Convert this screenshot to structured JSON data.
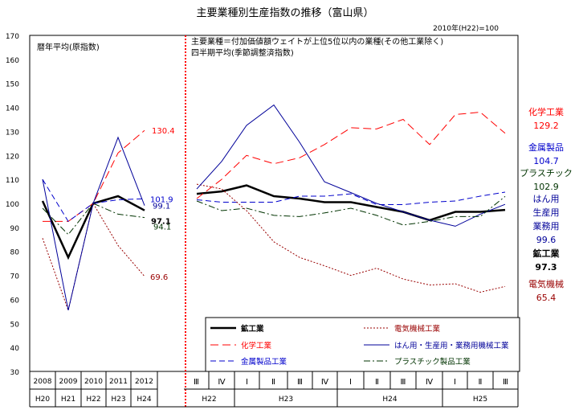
{
  "chart_data": {
    "type": "line",
    "title": "主要業種別生産指数の推移（富山県）",
    "base_note": "2010年(H22)=100",
    "ylim": [
      30,
      170
    ],
    "yticks": [
      30,
      40,
      50,
      60,
      70,
      80,
      90,
      100,
      110,
      120,
      130,
      140,
      150,
      160,
      170
    ],
    "grid": false,
    "annual_note": "暦年平均(原指数)",
    "quarterly_note_1": "主要業種＝付加価値額ウェイトが上位5位以内の業種(その他工業除く)",
    "quarterly_note_2": "四半期平均(季節調整済指数)",
    "annual_categories": [
      {
        "year": "2008",
        "era": "H20"
      },
      {
        "year": "2009",
        "era": "H21"
      },
      {
        "year": "2010",
        "era": "H22"
      },
      {
        "year": "2011",
        "era": "H23"
      },
      {
        "year": "2012",
        "era": "H24"
      }
    ],
    "quarter_categories": [
      "Ⅲ",
      "Ⅳ",
      "Ⅰ",
      "Ⅱ",
      "Ⅲ",
      "Ⅳ",
      "Ⅰ",
      "Ⅱ",
      "Ⅲ",
      "Ⅳ",
      "Ⅰ",
      "Ⅱ",
      "Ⅲ"
    ],
    "quarter_year_groups": [
      {
        "label": "H22",
        "start": 0,
        "end": 1
      },
      {
        "label": "H23",
        "start": 2,
        "end": 5
      },
      {
        "label": "H24",
        "start": 6,
        "end": 9
      },
      {
        "label": "H25",
        "start": 10,
        "end": 12
      }
    ],
    "series": [
      {
        "name": "鉱工業",
        "color": "#000000",
        "dash": "solid",
        "width": 2.5,
        "annual": [
          101,
          77.5,
          100,
          103,
          97.1
        ],
        "quarterly": [
          104,
          105,
          107.5,
          103,
          102,
          100.5,
          100.5,
          98.5,
          96.5,
          93,
          96.5,
          96.5,
          97.3
        ],
        "annual_end_label": "97.1",
        "right_label": [
          "鉱工業",
          "97.3"
        ]
      },
      {
        "name": "化学工業",
        "color": "#ff0000",
        "dash": "longdash",
        "width": 1,
        "annual": [
          92.5,
          92.5,
          100,
          121,
          130.4
        ],
        "quarterly": [
          102,
          110,
          120,
          116.5,
          119,
          124.5,
          131.5,
          131,
          135,
          124.5,
          137,
          138,
          129.2
        ],
        "annual_end_label": "130.4",
        "right_label": [
          "化学工業",
          "129.2"
        ]
      },
      {
        "name": "金属製品工業",
        "color": "#0000cc",
        "dash": "dash",
        "width": 1,
        "annual": [
          110,
          92.5,
          100,
          101.5,
          101.9
        ],
        "quarterly": [
          101.5,
          100.5,
          100.5,
          100.5,
          103,
          103,
          104,
          99.5,
          99.5,
          100.5,
          101,
          103,
          104.7
        ],
        "annual_end_label": "101.9",
        "right_label": [
          "金属製品",
          "104.7"
        ]
      },
      {
        "name": "電気機械工業",
        "color": "#990000",
        "dash": "dot",
        "width": 1,
        "annual": [
          85.5,
          55.5,
          100,
          82.5,
          69.6
        ],
        "quarterly": [
          108,
          106,
          97,
          84,
          77.5,
          74,
          70,
          73,
          68.5,
          66,
          66.5,
          63,
          65.4
        ],
        "annual_end_label": "69.6",
        "right_label": [
          "電気機械",
          "65.4"
        ]
      },
      {
        "name": "はん用・生産用・業務用機械工業",
        "color": "#000099",
        "dash": "solid",
        "width": 1,
        "annual": [
          110,
          55.5,
          100,
          127.5,
          99.1
        ],
        "quarterly": [
          106,
          117.5,
          132.5,
          141,
          125.5,
          109,
          104.5,
          100,
          96.5,
          93,
          90.5,
          95.5,
          99.6
        ],
        "annual_end_label": "99.1",
        "right_label": [
          "はん用",
          "生産用",
          "業務用",
          "99.6"
        ]
      },
      {
        "name": "プラスチック製品工業",
        "color": "#003300",
        "dash": "dashdot",
        "width": 1,
        "annual": [
          98,
          87,
          100,
          95.5,
          94.1
        ],
        "quarterly": [
          101,
          97,
          98,
          95,
          94.5,
          96,
          98,
          95,
          91,
          92.5,
          94.5,
          94.5,
          102.9
        ],
        "annual_end_label": "94.1",
        "right_label": [
          "プラスチック",
          "102.9"
        ]
      }
    ]
  }
}
